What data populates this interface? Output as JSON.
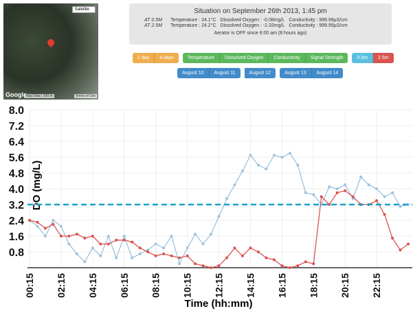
{
  "map": {
    "type_select": "Satellite",
    "brand": "Google",
    "attribution": "Map Data",
    "scale": "100 m",
    "terms": "Terms of Use"
  },
  "status": {
    "title": "Situation on September 26th 2013, 1:45 pm",
    "rows": [
      [
        "AT 0.5M",
        "Temperature : 24.1°C",
        "Dissolved Oxygen : -0.08mg/L",
        "Conductivity : 999.99µS/cm"
      ],
      [
        "AT 2.5M",
        "Temperature : 24.2°C",
        "Dissolved Oxygen : -2.32mg/L",
        "Conductivity : 999.99µS/cm"
      ]
    ],
    "aerator": "Aerator is OFF since 6:00 am (8 hours ago)"
  },
  "buttons": {
    "periods": [
      "1 day",
      "4 days"
    ],
    "measures": [
      "Temperature",
      "Dissolved Oxygen",
      "Conductivity",
      "Signal Strength"
    ],
    "depths": [
      "0.5m",
      "2.5m"
    ],
    "dates": [
      "August 10",
      "August 11",
      "August 12",
      "August 13",
      "August 14"
    ]
  },
  "chart_data": {
    "type": "line",
    "y_label": "DO (mg/L)",
    "x_label": "Time (hh:mm)",
    "categories": [
      "00:15",
      null,
      null,
      null,
      "02:15",
      null,
      null,
      null,
      "04:15",
      null,
      null,
      null,
      "06:15",
      null,
      null,
      null,
      "08:15",
      null,
      null,
      null,
      "10:15",
      null,
      null,
      null,
      "12:15",
      null,
      null,
      null,
      "14:15",
      null,
      null,
      null,
      "16:15",
      null,
      null,
      null,
      "18:15",
      null,
      null,
      null,
      "20:15",
      null,
      null,
      null,
      "22:15",
      null,
      null,
      null,
      null
    ],
    "series": [
      {
        "color": "#9ec3dd",
        "values": [
          2.4,
          2.1,
          1.6,
          2.4,
          2.1,
          1.2,
          0.7,
          0.3,
          1.0,
          0.6,
          1.6,
          0.5,
          1.6,
          0.5,
          0.7,
          0.9,
          1.2,
          1.0,
          1.6,
          0.2,
          1.0,
          1.7,
          1.2,
          1.7,
          2.6,
          3.5,
          4.2,
          4.9,
          5.7,
          5.2,
          5.0,
          5.7,
          5.6,
          5.8,
          5.2,
          3.8,
          3.7,
          3.2,
          4.1,
          4.0,
          4.2,
          3.5,
          4.6,
          4.2,
          4.0,
          3.6,
          3.8,
          3.1,
          3.2
        ]
      },
      {
        "color": "#d9534f",
        "values": [
          2.4,
          2.3,
          2.0,
          2.2,
          1.6,
          1.6,
          1.7,
          1.5,
          1.6,
          1.2,
          1.2,
          1.4,
          1.4,
          1.3,
          1.0,
          0.8,
          0.6,
          0.7,
          0.6,
          0.5,
          0.6,
          0.2,
          0.1,
          0.0,
          0.1,
          0.5,
          1.0,
          0.6,
          1.0,
          0.8,
          0.5,
          0.4,
          0.1,
          0.0,
          0.1,
          0.3,
          0.2,
          3.6,
          3.2,
          3.8,
          3.9,
          3.6,
          3.2,
          3.2,
          3.4,
          2.7,
          1.5,
          0.9,
          1.2
        ]
      }
    ],
    "threshold": 3.2,
    "threshold_color": "#17a2c8",
    "ylim": [
      0,
      8
    ],
    "yticks": [
      0.8,
      1.6,
      2.4,
      3.2,
      {
        "value": 4,
        "label": "4.0"
      },
      4.8,
      5.6,
      6.4,
      7.2,
      {
        "value": 8,
        "label": "8.0"
      }
    ],
    "grid": true
  }
}
